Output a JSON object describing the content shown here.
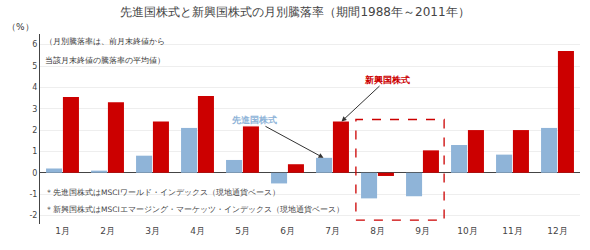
{
  "chart_data": {
    "type": "bar",
    "title": "先進国株式と新興国株式の月別騰落率（期間1988年～2011年）",
    "categories": [
      "1月",
      "2月",
      "3月",
      "4月",
      "5月",
      "6月",
      "7月",
      "8月",
      "9月",
      "10月",
      "11月",
      "12月"
    ],
    "series": [
      {
        "name": "先進国株式",
        "color": "#8fb4d8",
        "values": [
          0.2,
          0.1,
          0.8,
          2.1,
          0.6,
          -0.5,
          0.7,
          -1.2,
          -1.1,
          1.3,
          0.85,
          2.1
        ]
      },
      {
        "name": "新興国株式",
        "color": "#cc0000",
        "values": [
          3.55,
          3.3,
          2.4,
          3.6,
          2.2,
          0.4,
          2.4,
          -0.15,
          1.05,
          2.0,
          2.0,
          5.7
        ]
      }
    ],
    "ylabel": "（%）",
    "ylim": [
      -2.4,
      6.5
    ],
    "yticks": [
      -2,
      -1,
      0,
      1,
      2,
      3,
      4,
      5,
      6
    ],
    "grid": true,
    "notes": [
      "（月別騰落率は、前月末終値から",
      "当該月末終値の騰落率の平均値）"
    ],
    "footnotes": [
      "＊先進国株式はMSCIワールド・インデックス（現地通貨ベース）",
      "＊新興国株式はMSCIエマージング・マーケッツ・インデックス（現地通貨ベース）"
    ]
  }
}
